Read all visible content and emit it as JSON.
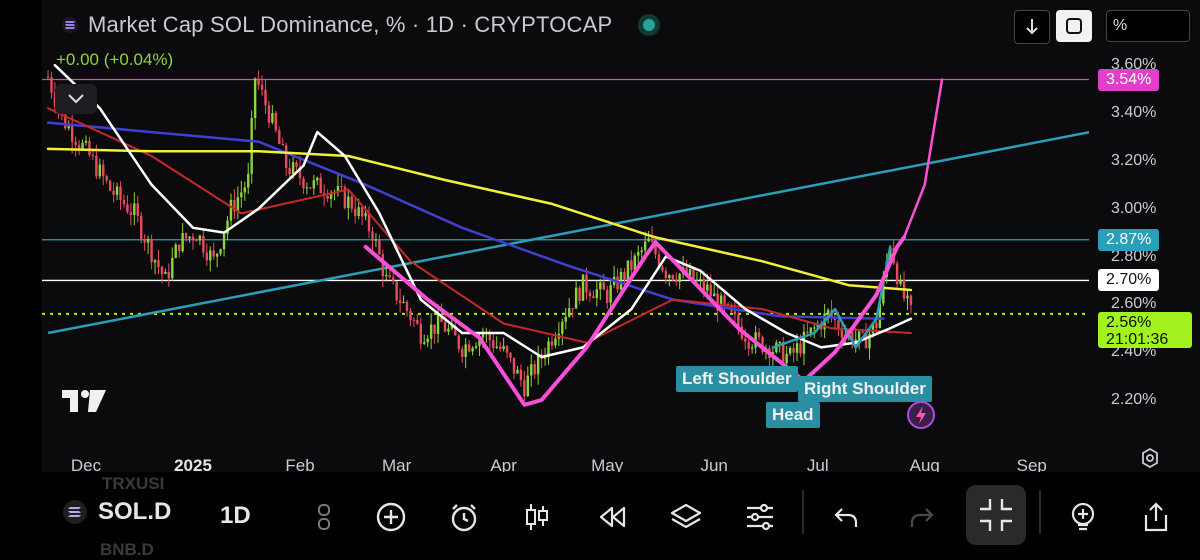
{
  "header": {
    "title": "Market Cap SOL Dominance, % · 1D · CRYPTOCAP",
    "change": "+0.00 (+0.04%)"
  },
  "toolbar": {
    "scale_label": "%"
  },
  "price_labels": [
    {
      "text": "3.54%",
      "value": 3.54,
      "bg": "#e040c8",
      "fg": "#ffffff"
    },
    {
      "text": "2.87%",
      "value": 2.87,
      "bg": "#2b9fb8",
      "fg": "#ffffff"
    },
    {
      "text": "2.70%",
      "value": 2.7,
      "bg": "#ffffff",
      "fg": "#111111"
    }
  ],
  "current_price": {
    "price": "2.56%",
    "countdown": "21:01:36",
    "bg": "#a1f21f"
  },
  "patterns": {
    "left_shoulder": "Left Shoulder",
    "head": "Head",
    "right_shoulder": "Right Shoulder"
  },
  "bottom_bar": {
    "symbol": "SOL.D",
    "timeframe": "1D",
    "ghost_above": "TRXUSI",
    "ghost_below": "BNB.D"
  },
  "icons": [
    "solana-icon",
    "chevron-down-icon",
    "download-icon",
    "auto-scale-icon",
    "tradingview-logo",
    "lightning-icon",
    "settings-icon",
    "add-icon",
    "alert-icon",
    "candles-icon",
    "replay-icon",
    "layers-icon",
    "indicators-icon",
    "undo-icon",
    "redo-icon",
    "fullscreen-exit-icon",
    "idea-icon",
    "share-icon"
  ],
  "colors": {
    "up": "#8bd63a",
    "down": "#e84a5f",
    "ema_white": "#ffffff",
    "ma_yellow": "#f4ef3a",
    "ma_red": "#c62828",
    "ma_blue": "#3f3fd0",
    "pattern": "#ff4fd8",
    "trend": "#2b9fb8"
  },
  "chart_data": {
    "type": "candlestick",
    "title": "Market Cap SOL Dominance, % · 1D · CRYPTOCAP",
    "y_unit": "%",
    "y_ticks": [
      "2.20%",
      "2.40%",
      "2.60%",
      "2.80%",
      "3.00%",
      "3.20%",
      "3.40%",
      "3.60%"
    ],
    "ylim": [
      2.12,
      3.64
    ],
    "x_ticks": [
      "Dec",
      "2025",
      "Feb",
      "Mar",
      "Apr",
      "May",
      "Jun",
      "Jul",
      "Aug",
      "Sep"
    ],
    "x_tick_dates": [
      "2024-12-01",
      "2025-01-01",
      "2025-02-01",
      "2025-03-01",
      "2025-04-01",
      "2025-05-01",
      "2025-06-01",
      "2025-07-01",
      "2025-08-01",
      "2025-09-01"
    ],
    "close_path": [
      [
        "2024-11-20",
        3.55
      ],
      [
        "2024-11-24",
        3.38
      ],
      [
        "2024-11-28",
        3.3
      ],
      [
        "2024-12-02",
        3.22
      ],
      [
        "2024-12-08",
        3.08
      ],
      [
        "2024-12-15",
        2.98
      ],
      [
        "2024-12-20",
        2.82
      ],
      [
        "2024-12-24",
        2.7
      ],
      [
        "2024-12-28",
        2.86
      ],
      [
        "2025-01-02",
        2.9
      ],
      [
        "2025-01-07",
        2.78
      ],
      [
        "2025-01-12",
        3.0
      ],
      [
        "2025-01-17",
        3.12
      ],
      [
        "2025-01-19",
        3.55
      ],
      [
        "2025-01-23",
        3.4
      ],
      [
        "2025-01-28",
        3.18
      ],
      [
        "2025-02-04",
        3.1
      ],
      [
        "2025-02-10",
        3.08
      ],
      [
        "2025-02-16",
        3.02
      ],
      [
        "2025-02-22",
        2.9
      ],
      [
        "2025-02-26",
        2.7
      ],
      [
        "2025-03-03",
        2.6
      ],
      [
        "2025-03-08",
        2.48
      ],
      [
        "2025-03-14",
        2.52
      ],
      [
        "2025-03-20",
        2.42
      ],
      [
        "2025-03-26",
        2.48
      ],
      [
        "2025-04-01",
        2.4
      ],
      [
        "2025-04-07",
        2.26
      ],
      [
        "2025-04-12",
        2.38
      ],
      [
        "2025-04-18",
        2.55
      ],
      [
        "2025-04-24",
        2.68
      ],
      [
        "2025-05-01",
        2.64
      ],
      [
        "2025-05-08",
        2.76
      ],
      [
        "2025-05-13",
        2.86
      ],
      [
        "2025-05-18",
        2.74
      ],
      [
        "2025-05-24",
        2.72
      ],
      [
        "2025-05-30",
        2.66
      ],
      [
        "2025-06-05",
        2.56
      ],
      [
        "2025-06-11",
        2.46
      ],
      [
        "2025-06-17",
        2.42
      ],
      [
        "2025-06-23",
        2.38
      ],
      [
        "2025-06-29",
        2.48
      ],
      [
        "2025-07-04",
        2.56
      ],
      [
        "2025-07-09",
        2.48
      ],
      [
        "2025-07-14",
        2.44
      ],
      [
        "2025-07-18",
        2.52
      ],
      [
        "2025-07-22",
        2.86
      ],
      [
        "2025-07-25",
        2.66
      ],
      [
        "2025-07-28",
        2.56
      ]
    ],
    "ma_white": [
      [
        "2024-11-22",
        3.6
      ],
      [
        "2024-12-05",
        3.42
      ],
      [
        "2024-12-20",
        3.1
      ],
      [
        "2025-01-01",
        2.92
      ],
      [
        "2025-01-10",
        2.9
      ],
      [
        "2025-01-20",
        3.0
      ],
      [
        "2025-02-02",
        3.18
      ],
      [
        "2025-02-06",
        3.32
      ],
      [
        "2025-02-14",
        3.22
      ],
      [
        "2025-02-24",
        2.98
      ],
      [
        "2025-03-08",
        2.62
      ],
      [
        "2025-03-20",
        2.48
      ],
      [
        "2025-04-01",
        2.48
      ],
      [
        "2025-04-12",
        2.38
      ],
      [
        "2025-04-24",
        2.42
      ],
      [
        "2025-05-08",
        2.58
      ],
      [
        "2025-05-18",
        2.8
      ],
      [
        "2025-05-28",
        2.74
      ],
      [
        "2025-06-10",
        2.58
      ],
      [
        "2025-06-22",
        2.48
      ],
      [
        "2025-07-02",
        2.42
      ],
      [
        "2025-07-12",
        2.44
      ],
      [
        "2025-07-22",
        2.5
      ],
      [
        "2025-07-28",
        2.54
      ]
    ],
    "ma_yellow": [
      [
        "2024-11-20",
        3.25
      ],
      [
        "2024-12-20",
        3.24
      ],
      [
        "2025-01-20",
        3.24
      ],
      [
        "2025-02-15",
        3.22
      ],
      [
        "2025-03-15",
        3.12
      ],
      [
        "2025-04-15",
        3.02
      ],
      [
        "2025-05-15",
        2.88
      ],
      [
        "2025-06-15",
        2.78
      ],
      [
        "2025-07-10",
        2.68
      ],
      [
        "2025-07-28",
        2.66
      ]
    ],
    "ma_red": [
      [
        "2024-11-20",
        3.42
      ],
      [
        "2024-12-20",
        3.22
      ],
      [
        "2025-01-15",
        2.98
      ],
      [
        "2025-02-15",
        3.08
      ],
      [
        "2025-03-05",
        2.78
      ],
      [
        "2025-04-01",
        2.52
      ],
      [
        "2025-04-25",
        2.44
      ],
      [
        "2025-05-20",
        2.62
      ],
      [
        "2025-06-15",
        2.58
      ],
      [
        "2025-07-05",
        2.5
      ],
      [
        "2025-07-28",
        2.48
      ]
    ],
    "ma_blue": [
      [
        "2024-11-20",
        3.36
      ],
      [
        "2024-12-20",
        3.32
      ],
      [
        "2025-01-20",
        3.28
      ],
      [
        "2025-02-20",
        3.1
      ],
      [
        "2025-03-20",
        2.92
      ],
      [
        "2025-04-20",
        2.76
      ],
      [
        "2025-05-20",
        2.62
      ],
      [
        "2025-06-20",
        2.55
      ],
      [
        "2025-07-20",
        2.54
      ]
    ],
    "horizontal_levels": [
      3.54,
      2.87,
      2.7,
      2.56
    ],
    "trendline": [
      [
        "2024-11-20",
        2.48
      ],
      [
        "2025-09-25",
        3.34
      ]
    ],
    "pattern_path": [
      [
        "2025-02-20",
        2.84
      ],
      [
        "2025-03-10",
        2.62
      ],
      [
        "2025-03-25",
        2.46
      ],
      [
        "2025-04-07",
        2.18
      ],
      [
        "2025-04-12",
        2.2
      ],
      [
        "2025-04-25",
        2.42
      ],
      [
        "2025-05-12",
        2.8
      ],
      [
        "2025-05-15",
        2.86
      ],
      [
        "2025-06-08",
        2.5
      ],
      [
        "2025-06-27",
        2.28
      ],
      [
        "2025-07-06",
        2.4
      ],
      [
        "2025-07-18",
        2.64
      ],
      [
        "2025-07-24",
        2.84
      ],
      [
        "2025-07-26",
        2.88
      ]
    ],
    "projection_path": [
      [
        "2025-07-26",
        2.88
      ],
      [
        "2025-08-01",
        3.1
      ],
      [
        "2025-08-06",
        3.54
      ]
    ],
    "hs_path": [
      [
        "2025-06-18",
        2.42
      ],
      [
        "2025-06-30",
        2.48
      ],
      [
        "2025-07-06",
        2.58
      ],
      [
        "2025-07-12",
        2.42
      ],
      [
        "2025-07-18",
        2.54
      ],
      [
        "2025-07-22",
        2.84
      ]
    ]
  }
}
